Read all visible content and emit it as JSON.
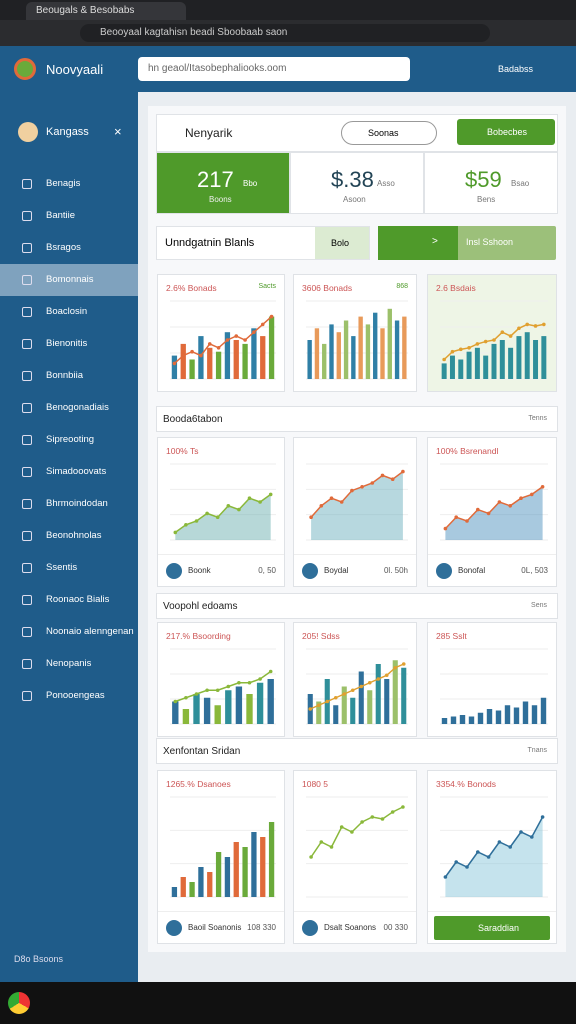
{
  "browser": {
    "tab": "Beougals & Besobabs",
    "url": "Beooyaal kagtahisn beadi Sboobaab saon"
  },
  "header": {
    "brand": "Noovyaali",
    "search": "hn geaol/Itasobephaliooks.oom",
    "user": "Badabss"
  },
  "sidebar": {
    "user": "Kangass",
    "close": "×",
    "items": [
      "Benagis",
      "Bantiie",
      "Bsragos",
      "Bomonnais",
      "Boaclosin",
      "Bienonitis",
      "Bonnbiia",
      "Benogonadiais",
      "Sipreooting",
      "Simadooovats",
      "Bhrmoindodan",
      "Beonohnolas",
      "Ssentis",
      "Roonaoc Bialis",
      "Noonaio alenngenan",
      "Nenopanis",
      "Ponooengeas"
    ],
    "active_item": 3,
    "footer": "D8o Bsoons"
  },
  "panel": {
    "title": "Nenyarik",
    "select": "Soonas",
    "button": "Bobecbes"
  },
  "stats": [
    {
      "value": "217",
      "unit": "Bbo",
      "label": "Boons"
    },
    {
      "value": "$.38",
      "unit": "Asso",
      "label": "Asoon"
    },
    {
      "value": "$59",
      "unit": "Bsao",
      "label": "Bens"
    }
  ],
  "filter": {
    "label": "Unndgatnin Blanls",
    "tag": "Bolo",
    "button": ">",
    "option": "Insl Sshoon"
  },
  "top_charts": [
    {
      "type": "bar",
      "title": "2.6% Bonads",
      "badge": "Sacts",
      "ylim": [
        0,
        100
      ],
      "values": [
        30,
        45,
        25,
        55,
        40,
        35,
        60,
        50,
        45,
        65,
        55,
        80
      ],
      "colors": [
        "#2f7fa6",
        "#e06a3a",
        "#6aaa3a"
      ],
      "line": [
        20,
        30,
        35,
        30,
        45,
        40,
        50,
        55,
        50,
        60,
        70,
        80
      ],
      "line_color": "#e06a3a"
    },
    {
      "type": "bar",
      "title": "3606 Bonads",
      "badge": "868",
      "ylim": [
        0,
        100
      ],
      "values": [
        50,
        65,
        45,
        70,
        60,
        75,
        55,
        80,
        70,
        85,
        65,
        90,
        75,
        80
      ],
      "colors": [
        "#2f7fa6",
        "#e89a5a",
        "#9cc06a"
      ]
    },
    {
      "type": "bar",
      "title": "2.6 Bsdais",
      "ylim": [
        0,
        100
      ],
      "values": [
        20,
        30,
        25,
        35,
        40,
        30,
        45,
        50,
        40,
        55,
        60,
        50,
        55
      ],
      "colors": [
        "#2f8f9a"
      ],
      "line": [
        25,
        35,
        38,
        40,
        45,
        48,
        50,
        60,
        55,
        65,
        70,
        68,
        70
      ],
      "line_color": "#e0a030"
    }
  ],
  "sections": [
    {
      "title": "Booda6tabon",
      "link": "Tenns",
      "cards": [
        {
          "type": "area",
          "title": "100% Ts",
          "ylim": [
            0,
            100
          ],
          "values": [
            10,
            20,
            25,
            35,
            30,
            45,
            40,
            55,
            50,
            60
          ],
          "color": "#5fa8a8",
          "line_color": "#8ab83a",
          "footer": {
            "label": "Boonk",
            "value": "0, 50"
          }
        },
        {
          "type": "area",
          "title": "",
          "ylim": [
            0,
            100
          ],
          "values": [
            30,
            45,
            55,
            50,
            65,
            70,
            75,
            85,
            80,
            90
          ],
          "color": "#5fa8b8",
          "line_color": "#e06a3a",
          "footer": {
            "label": "Boydal",
            "value": "0l. 50h"
          }
        },
        {
          "type": "area",
          "title": "100% Bsrenandl",
          "ylim": [
            0,
            100
          ],
          "values": [
            15,
            30,
            25,
            40,
            35,
            50,
            45,
            55,
            60,
            70
          ],
          "color": "#3f88b8",
          "line_color": "#e06a3a",
          "footer": {
            "label": "Bonofal",
            "value": "0L, 503"
          }
        }
      ]
    },
    {
      "title": "Voopohl edoams",
      "link": "Sens",
      "cards": [
        {
          "type": "bar",
          "title": "217.% Bsoording",
          "ylim": [
            0,
            100
          ],
          "values": [
            30,
            20,
            40,
            35,
            25,
            45,
            50,
            40,
            55,
            60
          ],
          "colors": [
            "#2f6f9a",
            "#8ab83a",
            "#2f8f9a"
          ],
          "line": [
            30,
            35,
            40,
            45,
            45,
            50,
            55,
            55,
            60,
            70
          ],
          "line_color": "#8ab83a"
        },
        {
          "type": "bar",
          "title": "205! Sdss",
          "ylim": [
            0,
            100
          ],
          "values": [
            40,
            30,
            60,
            25,
            50,
            35,
            70,
            45,
            80,
            60,
            85,
            75
          ],
          "colors": [
            "#2f6f9a",
            "#9cc06a",
            "#2f8f9a"
          ],
          "line": [
            20,
            25,
            30,
            35,
            40,
            45,
            50,
            55,
            60,
            65,
            75,
            80
          ],
          "line_color": "#e0a030"
        },
        {
          "type": "bar",
          "title": "285 Sslt",
          "ylim": [
            0,
            100
          ],
          "values": [
            8,
            10,
            12,
            10,
            15,
            20,
            18,
            25,
            22,
            30,
            25,
            35
          ],
          "colors": [
            "#2f6f9a"
          ]
        }
      ]
    },
    {
      "title": "Xenfontan Sridan",
      "link": "Tnans",
      "cards": [
        {
          "type": "bar",
          "title": "1265.% Dsanoes",
          "ylim": [
            0,
            100
          ],
          "values": [
            10,
            20,
            15,
            30,
            25,
            45,
            40,
            55,
            50,
            65,
            60,
            75
          ],
          "colors": [
            "#2f6f9a",
            "#e06a3a",
            "#6aaa3a"
          ],
          "footer": {
            "label": "Baoil Soanonis",
            "value": "108 330"
          }
        },
        {
          "type": "line",
          "title": "1080 5",
          "ylim": [
            0,
            100
          ],
          "values": [
            40,
            55,
            50,
            70,
            65,
            75,
            80,
            78,
            85,
            90
          ],
          "line_color": "#8ab83a",
          "footer": {
            "label": "Dsalt Soanons",
            "value": "00 330"
          }
        },
        {
          "type": "area",
          "title": "3354.% Bonods",
          "ylim": [
            0,
            100
          ],
          "values": [
            20,
            35,
            30,
            45,
            40,
            55,
            50,
            65,
            60,
            80
          ],
          "color": "#7fc0d8",
          "line_color": "#2f6f9a",
          "footer": {
            "button": "Saraddian"
          }
        }
      ]
    }
  ]
}
